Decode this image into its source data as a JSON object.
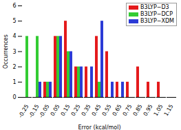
{
  "chart_data": {
    "type": "bar",
    "x_label": "Error (kcal/mol)",
    "y_label": "Occurrences",
    "categories": [
      "-0.25",
      "-0.15",
      "-0.05",
      "0.05",
      "0.15",
      "0.25",
      "0.35",
      "0.45",
      "0.55",
      "0.65",
      "0.75",
      "0.85",
      "0.95",
      "1.05",
      "1.15"
    ],
    "series": [
      {
        "name": "B3LYP−D3",
        "color": "#e41a1c",
        "values": [
          0,
          0,
          1,
          4,
          5,
          2,
          2,
          4,
          3,
          1,
          1,
          2,
          1,
          1,
          0
        ]
      },
      {
        "name": "B3LYP−DCP",
        "color": "#33cc33",
        "values": [
          4,
          4,
          1,
          4,
          3,
          2,
          0,
          1,
          0,
          0,
          0,
          0,
          0,
          0,
          0
        ]
      },
      {
        "name": "B3LYP−XDM",
        "color": "#2b3bd6",
        "values": [
          0,
          1,
          1,
          4,
          3,
          2,
          2,
          5,
          1,
          1,
          0,
          0,
          0,
          0,
          0
        ]
      }
    ],
    "ylim": [
      0,
      6
    ],
    "yticks": [
      0,
      1,
      2,
      3,
      4,
      5,
      6
    ],
    "legend": "top-right",
    "grid": false
  }
}
